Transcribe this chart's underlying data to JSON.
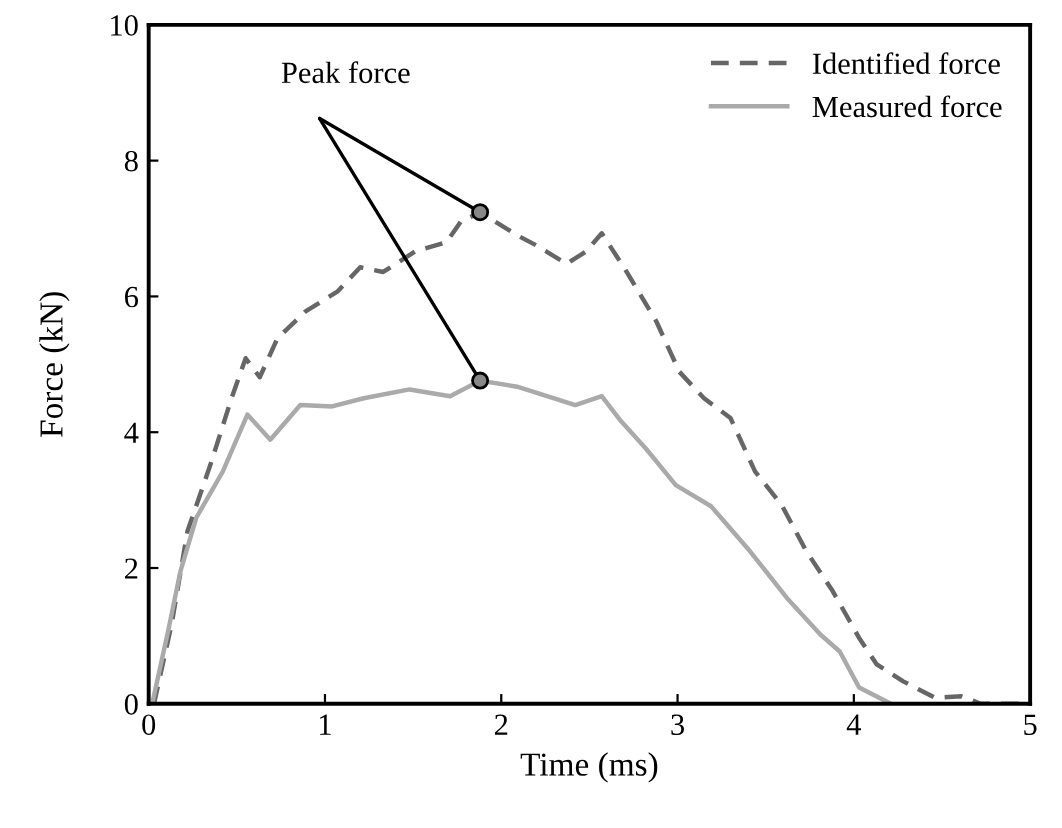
{
  "chart_data": {
    "type": "line",
    "xlabel": "Time (ms)",
    "ylabel": "Force (kN)",
    "xlim": [
      0,
      5
    ],
    "ylim": [
      0,
      10
    ],
    "xticks": [
      0,
      1,
      2,
      3,
      4,
      5
    ],
    "yticks": [
      0,
      2,
      4,
      6,
      8,
      10
    ],
    "grid": false,
    "legend": "top right",
    "series": [
      {
        "name": "Identified force",
        "color": "#666666",
        "line_style": "dashed",
        "x": [
          0.03,
          0.13,
          0.22,
          0.35,
          0.47,
          0.55,
          0.63,
          0.73,
          0.89,
          1.07,
          1.2,
          1.33,
          1.51,
          1.69,
          1.77,
          1.88,
          2.09,
          2.2,
          2.37,
          2.48,
          2.57,
          2.7,
          2.88,
          3.01,
          3.15,
          3.3,
          3.44,
          3.59,
          3.73,
          3.88,
          4.03,
          4.13,
          4.28,
          4.46,
          4.61,
          4.72,
          4.96
        ],
        "values": [
          0,
          1.17,
          2.54,
          3.52,
          4.5,
          5.09,
          4.81,
          5.38,
          5.78,
          6.07,
          6.43,
          6.36,
          6.66,
          6.8,
          7.1,
          7.24,
          6.9,
          6.75,
          6.48,
          6.66,
          6.93,
          6.41,
          5.63,
          4.89,
          4.5,
          4.21,
          3.42,
          2.93,
          2.25,
          1.66,
          0.97,
          0.58,
          0.33,
          0.09,
          0.11,
          0,
          0
        ]
      },
      {
        "name": "Measured force",
        "color": "#aaaaaa",
        "line_style": "solid",
        "x": [
          0.02,
          0.11,
          0.18,
          0.27,
          0.42,
          0.56,
          0.69,
          0.86,
          1.04,
          1.22,
          1.48,
          1.71,
          1.88,
          2.09,
          2.42,
          2.57,
          2.68,
          2.82,
          2.99,
          3.19,
          3.41,
          3.62,
          3.81,
          3.92,
          4.03,
          4.21
        ],
        "values": [
          0,
          1.07,
          1.95,
          2.74,
          3.42,
          4.26,
          3.89,
          4.4,
          4.38,
          4.5,
          4.63,
          4.53,
          4.76,
          4.67,
          4.4,
          4.53,
          4.16,
          3.76,
          3.22,
          2.91,
          2.25,
          1.56,
          1.02,
          0.77,
          0.24,
          0
        ]
      },
      {
        "type": "scatter",
        "color": "#888888",
        "marker": "circle",
        "x": [
          1.88,
          1.88
        ],
        "values": [
          7.24,
          4.76
        ]
      }
    ],
    "annotations": [
      {
        "text": "Peak force",
        "x": 1.88,
        "y": 7.24
      }
    ]
  }
}
